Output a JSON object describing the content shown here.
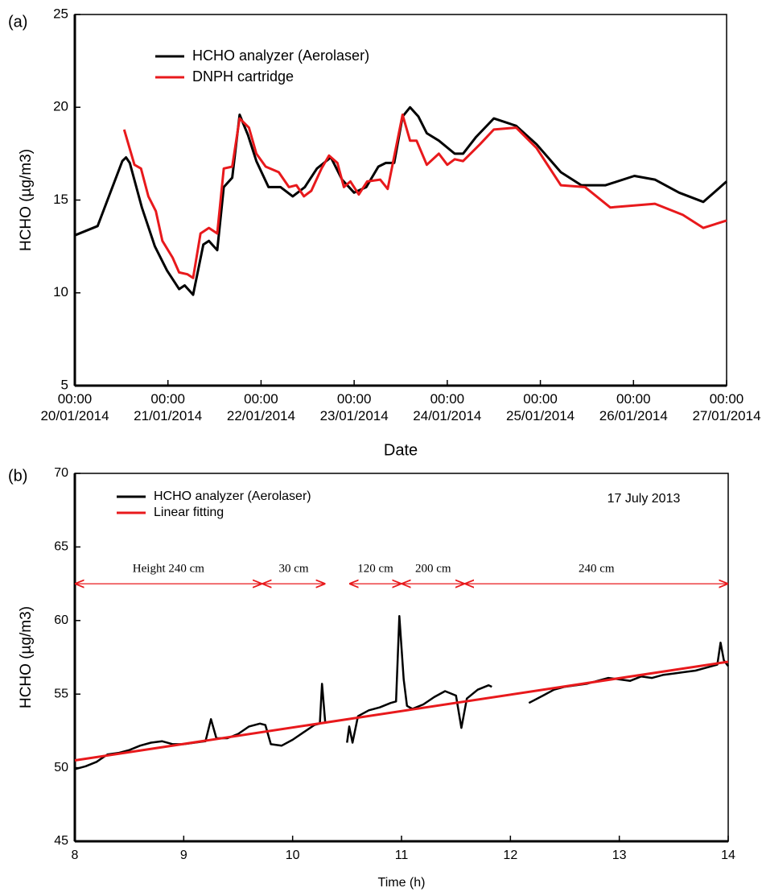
{
  "chart_data": [
    {
      "type": "line",
      "panel_label": "(a)",
      "xlabel": "Date",
      "ylabel": "HCHO (µg/m3)",
      "legend": "upper left",
      "xlim": [
        0,
        7
      ],
      "xticks": [
        {
          "value": 0,
          "label": "00:00\n20/01/2014"
        },
        {
          "value": 1,
          "label": "00:00\n21/01/2014"
        },
        {
          "value": 2,
          "label": "00:00\n22/01/2014"
        },
        {
          "value": 3,
          "label": "00:00\n23/01/2014"
        },
        {
          "value": 4,
          "label": "00:00\n24/01/2014"
        },
        {
          "value": 5,
          "label": "00:00\n25/01/2014"
        },
        {
          "value": 6,
          "label": "00:00\n26/01/2014"
        },
        {
          "value": 7,
          "label": "00:00\n27/01/2014"
        }
      ],
      "ylim": [
        5,
        25
      ],
      "yticks": [
        5,
        10,
        15,
        20,
        25
      ],
      "series": [
        {
          "name": "HCHO analyzer (Aerolaser)",
          "color": "#000000",
          "x": [
            0,
            0.245,
            0.51,
            0.55,
            0.59,
            0.72,
            0.86,
            0.99,
            1.12,
            1.18,
            1.27,
            1.38,
            1.44,
            1.53,
            1.6,
            1.69,
            1.77,
            1.86,
            1.95,
            2.08,
            2.21,
            2.34,
            2.47,
            2.6,
            2.75,
            2.87,
            3.0,
            3.13,
            3.26,
            3.34,
            3.43,
            3.52,
            3.6,
            3.69,
            3.78,
            3.91,
            4.08,
            4.17,
            4.31,
            4.5,
            4.74,
            4.96,
            5.22,
            5.44,
            5.7,
            6.01,
            6.23,
            6.49,
            6.75,
            7.0
          ],
          "values": [
            13.1,
            13.6,
            17.1,
            17.3,
            17.0,
            14.6,
            12.5,
            11.2,
            10.2,
            10.4,
            9.9,
            12.6,
            12.8,
            12.3,
            15.7,
            16.2,
            19.6,
            18.5,
            17.1,
            15.7,
            15.7,
            15.2,
            15.7,
            16.7,
            17.3,
            16.1,
            15.4,
            15.7,
            16.8,
            17.0,
            17.0,
            19.5,
            20.0,
            19.5,
            18.6,
            18.2,
            17.5,
            17.5,
            18.4,
            19.4,
            19.0,
            18.0,
            16.5,
            15.8,
            15.8,
            16.3,
            16.1,
            15.4,
            14.9,
            16.0
          ]
        },
        {
          "name": "DNPH cartridge",
          "color": "#e8191c",
          "x": [
            0.53,
            0.64,
            0.71,
            0.79,
            0.87,
            0.94,
            1.05,
            1.12,
            1.21,
            1.27,
            1.35,
            1.44,
            1.53,
            1.6,
            1.69,
            1.77,
            1.87,
            1.95,
            2.05,
            2.19,
            2.3,
            2.38,
            2.46,
            2.54,
            2.65,
            2.73,
            2.82,
            2.89,
            2.96,
            3.05,
            3.14,
            3.28,
            3.36,
            3.52,
            3.6,
            3.67,
            3.78,
            3.91,
            4.0,
            4.08,
            4.17,
            4.35,
            4.5,
            4.74,
            4.96,
            5.22,
            5.48,
            5.75,
            6.23,
            6.53,
            6.75,
            7.0
          ],
          "values": [
            18.8,
            16.9,
            16.7,
            15.2,
            14.4,
            12.8,
            11.9,
            11.1,
            11.0,
            10.8,
            13.2,
            13.5,
            13.2,
            16.7,
            16.8,
            19.4,
            18.9,
            17.5,
            16.8,
            16.5,
            15.7,
            15.8,
            15.2,
            15.5,
            16.7,
            17.4,
            17.0,
            15.7,
            16.0,
            15.3,
            16.0,
            16.1,
            15.6,
            19.6,
            18.2,
            18.2,
            16.9,
            17.5,
            16.9,
            17.2,
            17.1,
            18.0,
            18.8,
            18.9,
            17.8,
            15.8,
            15.7,
            14.6,
            14.8,
            14.2,
            13.5,
            13.9
          ]
        }
      ]
    },
    {
      "type": "line",
      "panel_label": "(b)",
      "xlabel": "Time (h)",
      "ylabel": "HCHO (µg/m3)",
      "legend": "upper left",
      "annotation": "17 July 2013",
      "xlim": [
        8,
        14
      ],
      "xticks": [
        8,
        9,
        10,
        11,
        12,
        13,
        14
      ],
      "ylim": [
        45,
        70
      ],
      "yticks": [
        45,
        50,
        55,
        60,
        65,
        70
      ],
      "series": [
        {
          "name": "HCHO analyzer (Aerolaser)",
          "color": "#000000",
          "x": [
            8.0,
            8.1,
            8.2,
            8.3,
            8.4,
            8.5,
            8.6,
            8.7,
            8.8,
            8.9,
            9.0,
            9.1,
            9.2,
            9.25,
            9.3,
            9.4,
            9.5,
            9.6,
            9.7,
            9.75,
            9.8,
            9.9,
            10.0,
            10.1,
            10.2,
            10.25,
            10.27,
            10.3,
            10.4,
            10.5,
            10.52,
            10.55,
            10.6,
            10.7,
            10.8,
            10.9,
            10.95,
            10.98,
            11.02,
            11.05,
            11.1,
            11.2,
            11.3,
            11.4,
            11.5,
            11.55,
            11.6,
            11.7,
            11.8,
            11.83,
            12.0,
            12.17,
            12.3,
            12.4,
            12.5,
            12.6,
            12.7,
            12.8,
            12.9,
            13.0,
            13.1,
            13.2,
            13.3,
            13.4,
            13.5,
            13.6,
            13.7,
            13.8,
            13.9,
            13.93,
            13.96,
            14.0
          ],
          "values": [
            49.9,
            50.1,
            50.4,
            50.9,
            51.0,
            51.2,
            51.5,
            51.7,
            51.8,
            51.6,
            51.6,
            51.7,
            51.8,
            53.3,
            52.0,
            52.0,
            52.3,
            52.8,
            53.0,
            52.9,
            51.6,
            51.5,
            51.9,
            52.4,
            52.9,
            53.0,
            55.7,
            53.0,
            null,
            51.7,
            52.8,
            51.7,
            53.5,
            53.9,
            54.1,
            54.4,
            54.5,
            60.3,
            56.0,
            54.2,
            54.0,
            54.3,
            54.8,
            55.2,
            54.9,
            52.7,
            54.7,
            55.3,
            55.6,
            55.5,
            null,
            54.4,
            54.9,
            55.3,
            55.5,
            55.6,
            55.7,
            55.9,
            56.1,
            56.0,
            55.9,
            56.2,
            56.1,
            56.3,
            56.4,
            56.5,
            56.6,
            56.8,
            57.0,
            58.5,
            57.3,
            56.9
          ]
        },
        {
          "name": "Linear fitting",
          "color": "#e8191c",
          "x": [
            8,
            14
          ],
          "values": [
            50.5,
            57.2
          ]
        }
      ],
      "segments": [
        {
          "label": "Height  240 cm",
          "x": [
            8,
            9.72
          ],
          "y": 62.5,
          "color": "#e8191c"
        },
        {
          "label": "30 cm",
          "x": [
            9.72,
            10.3
          ],
          "y": 62.5,
          "color": "#e8191c"
        },
        {
          "label": "120 cm",
          "x": [
            10.52,
            11.0
          ],
          "y": 62.5,
          "color": "#e8191c"
        },
        {
          "label": "200 cm",
          "x": [
            11.0,
            11.58
          ],
          "y": 62.5,
          "color": "#e8191c"
        },
        {
          "label": "240 cm",
          "x": [
            11.58,
            14.0
          ],
          "y": 62.5,
          "color": "#e8191c"
        }
      ]
    }
  ]
}
